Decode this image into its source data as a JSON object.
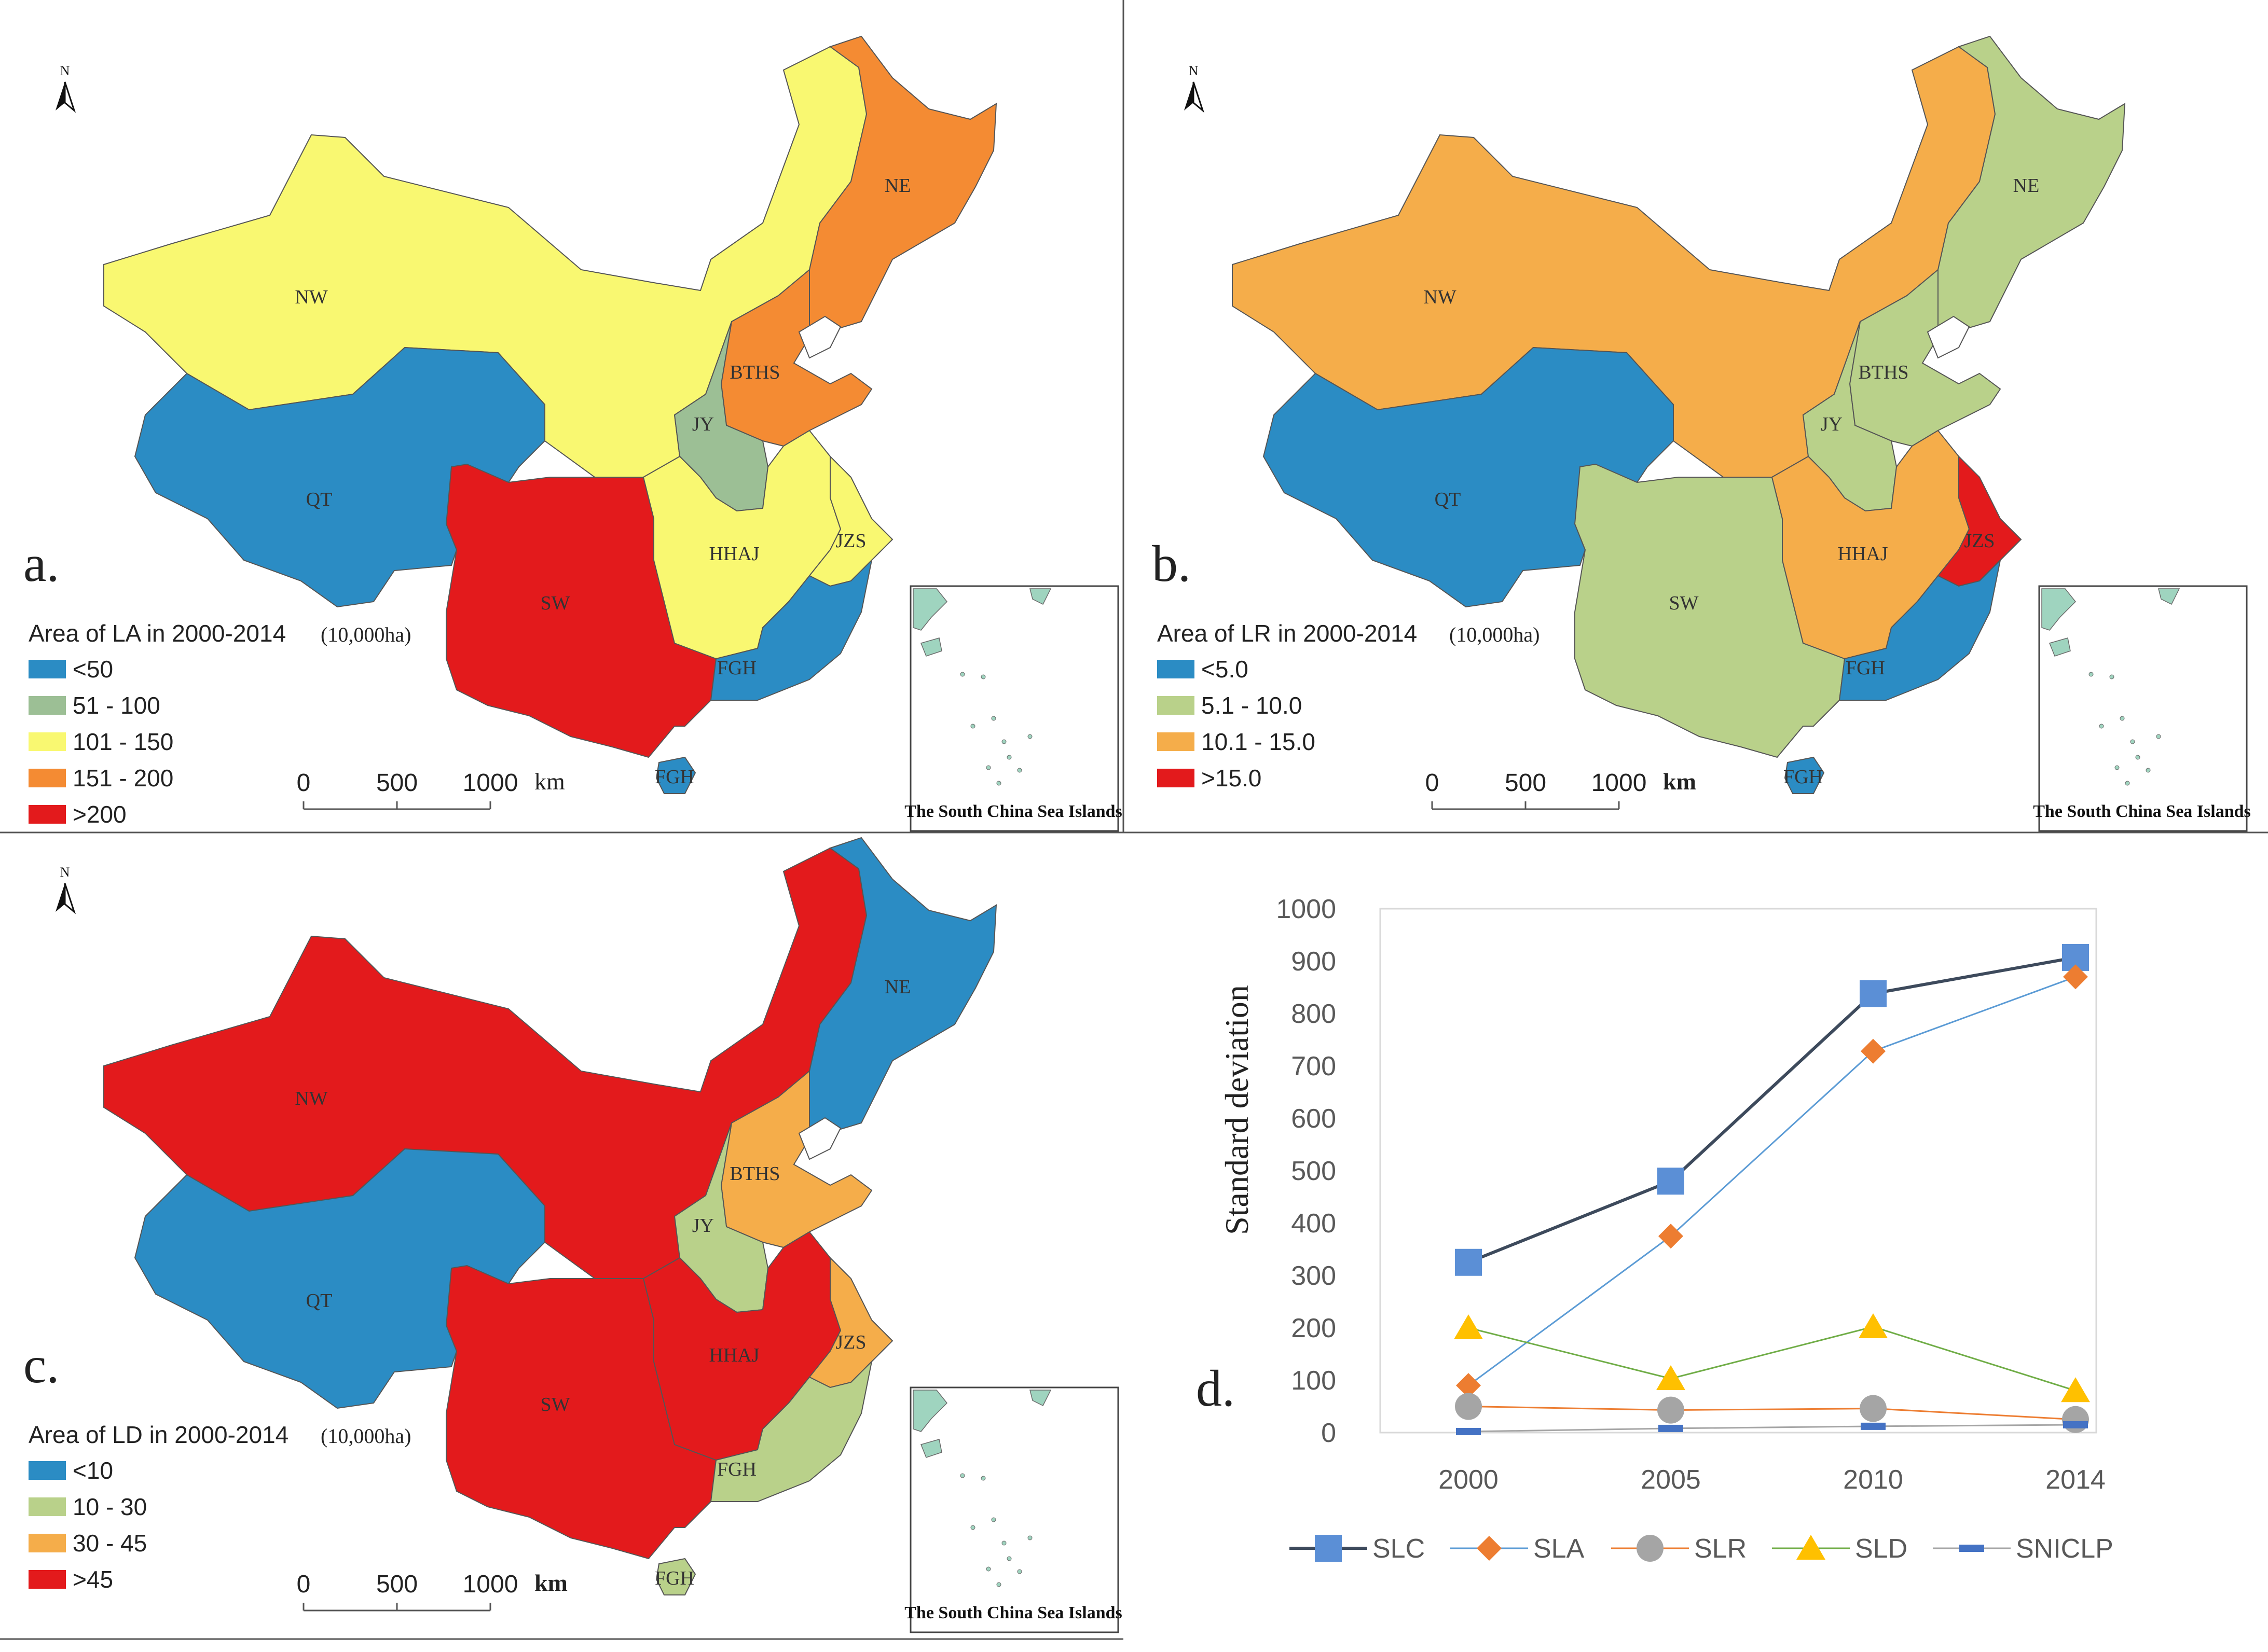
{
  "panels": [
    {
      "letter": "a.",
      "legend_title": "Area of LA in 2000-2014",
      "legend_unit": "(10,000ha)",
      "legend": [
        {
          "label": "<50",
          "color": "#2b8cc4"
        },
        {
          "label": "51 - 100",
          "color": "#9cbf95"
        },
        {
          "label": "101 - 150",
          "color": "#f9f871"
        },
        {
          "label": "151 - 200",
          "color": "#f48b33"
        },
        {
          "label": ">200",
          "color": "#e31a1c"
        }
      ],
      "region_colors": {
        "NW": "#f9f871",
        "QT": "#2b8cc4",
        "SW": "#e31a1c",
        "NE": "#f48b33",
        "BTHS": "#f48b33",
        "JY": "#9cbf95",
        "HHAJ": "#f9f871",
        "JZS": "#f9f871",
        "FGH": "#2b8cc4"
      },
      "scale": {
        "ticks": [
          "0",
          "500",
          "1000"
        ],
        "unit": "km"
      },
      "inset_caption": "The South China Sea Islands"
    },
    {
      "letter": "b.",
      "legend_title": "Area of LR in 2000-2014",
      "legend_unit": "(10,000ha)",
      "legend": [
        {
          "label": "<5.0",
          "color": "#2b8cc4"
        },
        {
          "label": "5.1 - 10.0",
          "color": "#b9d18a"
        },
        {
          "label": "10.1 - 15.0",
          "color": "#f5ad4a"
        },
        {
          "label": ">15.0",
          "color": "#e31a1c"
        }
      ],
      "region_colors": {
        "NW": "#f5ad4a",
        "QT": "#2b8cc4",
        "SW": "#b9d18a",
        "NE": "#b9d18a",
        "BTHS": "#b9d18a",
        "JY": "#b9d18a",
        "HHAJ": "#f5ad4a",
        "JZS": "#e31a1c",
        "FGH": "#2b8cc4"
      },
      "scale": {
        "ticks": [
          "0",
          "500",
          "1000"
        ],
        "unit": "km"
      },
      "inset_caption": "The South China Sea Islands"
    },
    {
      "letter": "c.",
      "legend_title": "Area of LD in 2000-2014",
      "legend_unit": "(10,000ha)",
      "legend": [
        {
          "label": "<10",
          "color": "#2b8cc4"
        },
        {
          "label": "10 - 30",
          "color": "#b9d18a"
        },
        {
          "label": "30 - 45",
          "color": "#f5ad4a"
        },
        {
          "label": ">45",
          "color": "#e31a1c"
        }
      ],
      "region_colors": {
        "NW": "#e31a1c",
        "QT": "#2b8cc4",
        "SW": "#e31a1c",
        "NE": "#2b8cc4",
        "BTHS": "#f5ad4a",
        "JY": "#b9d18a",
        "HHAJ": "#e31a1c",
        "JZS": "#f5ad4a",
        "FGH": "#b9d18a"
      },
      "scale": {
        "ticks": [
          "0",
          "500",
          "1000"
        ],
        "unit": "km"
      },
      "inset_caption": "The South China Sea Islands"
    }
  ],
  "north_label": "N",
  "region_labels": {
    "NW": "NW",
    "QT": "QT",
    "SW": "SW",
    "NE": "NE",
    "BTHS": "BTHS",
    "JY": "JY",
    "HHAJ": "HHAJ",
    "JZS": "JZS",
    "FGH": "FGH"
  },
  "chart_letter": "d.",
  "chart_data": {
    "type": "line",
    "title": "",
    "xlabel": "",
    "ylabel": "Standard deviation",
    "categories": [
      "2000",
      "2005",
      "2010",
      "2014"
    ],
    "ylim": [
      0,
      1000
    ],
    "yticks": [
      0,
      100,
      200,
      300,
      400,
      500,
      600,
      700,
      800,
      900,
      1000
    ],
    "series": [
      {
        "name": "SLC",
        "values": [
          325,
          480,
          838,
          907
        ],
        "marker": "square",
        "color": "#5b8fd6",
        "line": "#3d4a5c"
      },
      {
        "name": "SLA",
        "values": [
          90,
          375,
          728,
          870
        ],
        "marker": "diamond",
        "color": "#ed7d31",
        "line": "#5b9bd5"
      },
      {
        "name": "SLR",
        "values": [
          50,
          43,
          46,
          25
        ],
        "marker": "circle",
        "color": "#a5a5a5",
        "line": "#ed7d31"
      },
      {
        "name": "SLD",
        "values": [
          200,
          103,
          202,
          80
        ],
        "marker": "triangle",
        "color": "#ffc000",
        "line": "#70ad47"
      },
      {
        "name": "SNICLP",
        "values": [
          2,
          8,
          12,
          15
        ],
        "marker": "dash",
        "color": "#4472c4",
        "line": "#a5a5a5"
      }
    ],
    "grid": false,
    "legend_position": "bottom"
  }
}
